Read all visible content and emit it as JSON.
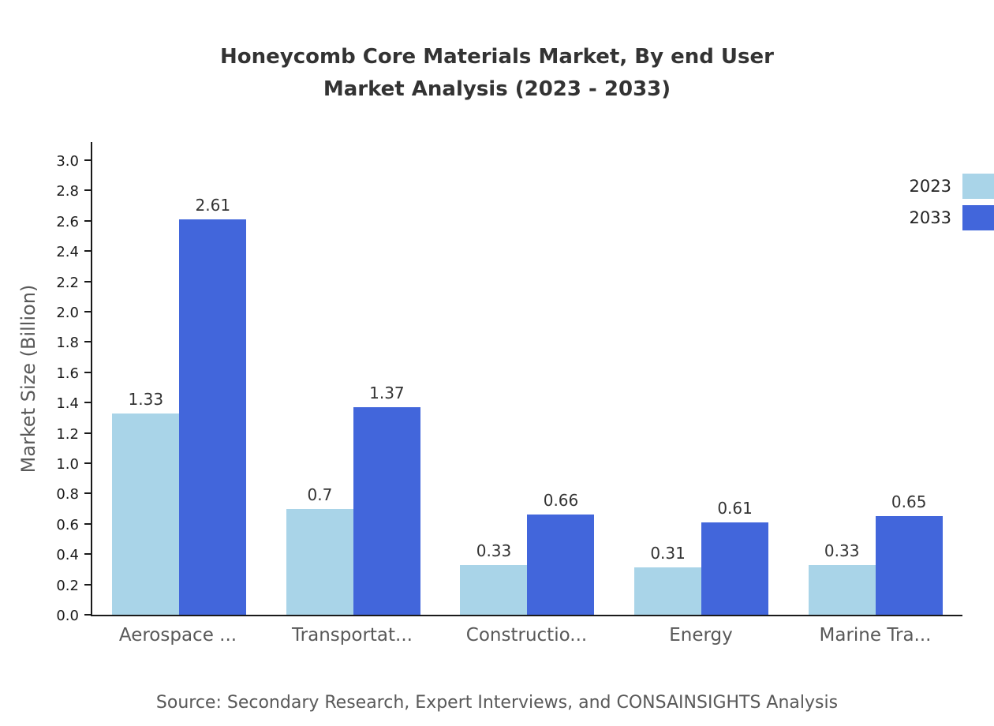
{
  "title_line1": "Honeycomb Core Materials Market, By end User",
  "title_line2": "Market Analysis (2023 - 2033)",
  "footer": "Source: Secondary Research, Expert Interviews, and CONSAINSIGHTS Analysis",
  "chart_data": {
    "type": "bar",
    "title": "Honeycomb Core Materials Market, By end User Market Analysis (2023 - 2033)",
    "xlabel": "",
    "ylabel": "Market Size (Billion)",
    "categories": [
      "Aerospace ...",
      "Transportat...",
      "Constructio...",
      "Energy",
      "Marine Tra..."
    ],
    "series": [
      {
        "name": "2023",
        "color": "#A9D4E8",
        "values": [
          1.33,
          0.7,
          0.33,
          0.31,
          0.33
        ]
      },
      {
        "name": "2033",
        "color": "#4266DB",
        "values": [
          2.61,
          1.37,
          0.66,
          0.61,
          0.65
        ]
      }
    ],
    "ylim": [
      0,
      3.0
    ],
    "ytick_step": 0.2,
    "grid": false,
    "legend_position": "top-right"
  }
}
